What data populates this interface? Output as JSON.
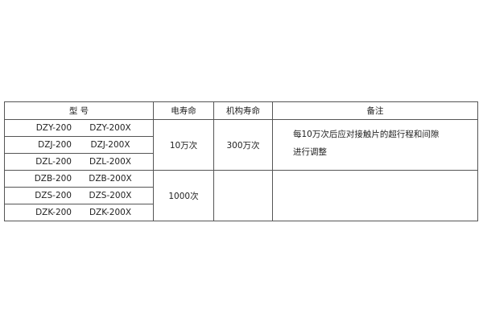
{
  "table": {
    "headers": [
      "型 号",
      "电寿命",
      "机构寿命",
      "备注"
    ],
    "rows": [
      {
        "model_a": "DZY-200",
        "model_b": "DZY-200X"
      },
      {
        "model_a": "DZJ-200",
        "model_b": "DZJ-200X"
      },
      {
        "model_a": "DZL-200",
        "model_b": "DZL-200X"
      },
      {
        "model_a": "DZB-200",
        "model_b": "DZB-200X"
      },
      {
        "model_a": "DZS-200",
        "model_b": "DZS-200X"
      },
      {
        "model_a": "DZK-200",
        "model_b": "DZK-200X"
      }
    ],
    "group1": {
      "electrical_life": "10万次",
      "mechanical_life": "300万次",
      "note_line1": "每10万次后应对接触片的超行程和间隙",
      "note_line2": "进行调整"
    },
    "group2": {
      "electrical_life": "1000次",
      "mechanical_life": "",
      "note": ""
    }
  }
}
